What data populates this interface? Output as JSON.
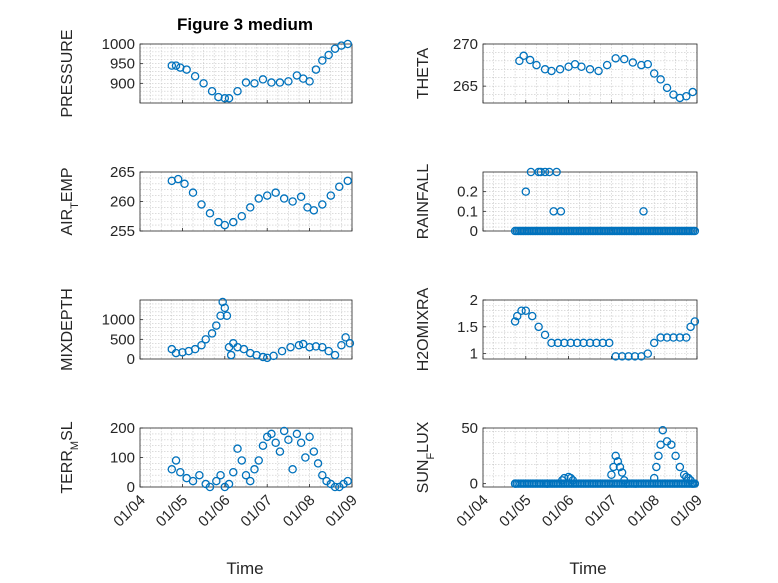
{
  "figure": {
    "title": "Figure 3 medium",
    "xlabel": "Time",
    "x_tick_labels": [
      "01/04",
      "01/05",
      "01/06",
      "01/07",
      "01/08",
      "01/09"
    ],
    "x_range_days": [
      4,
      9
    ],
    "marker_color": "#0072BD"
  },
  "chart_data": [
    {
      "type": "scatter",
      "panel": "top-left",
      "ylabel": "PRESSURE",
      "ylim": [
        850,
        1000
      ],
      "yticks": [
        900,
        950,
        1000
      ],
      "ytick_labels": [
        "900",
        "950",
        "1000"
      ],
      "x": [
        4.75,
        4.85,
        4.95,
        5.1,
        5.3,
        5.5,
        5.7,
        5.85,
        6.0,
        6.1,
        6.3,
        6.5,
        6.7,
        6.9,
        7.1,
        7.3,
        7.5,
        7.7,
        7.85,
        8.0,
        8.15,
        8.3,
        8.45,
        8.6,
        8.75,
        8.9
      ],
      "y": [
        945,
        945,
        940,
        935,
        918,
        900,
        880,
        865,
        862,
        862,
        880,
        902,
        900,
        910,
        902,
        902,
        905,
        920,
        912,
        905,
        935,
        958,
        972,
        988,
        996,
        1000
      ]
    },
    {
      "type": "scatter",
      "panel": "top-right",
      "ylabel": "THETA",
      "ylim": [
        263,
        270
      ],
      "yticks": [
        265,
        270
      ],
      "ytick_labels": [
        "265",
        "270"
      ],
      "x": [
        4.85,
        4.95,
        5.1,
        5.25,
        5.45,
        5.6,
        5.8,
        6.0,
        6.15,
        6.3,
        6.5,
        6.7,
        6.9,
        7.1,
        7.3,
        7.5,
        7.7,
        7.85,
        8.0,
        8.15,
        8.3,
        8.45,
        8.6,
        8.75,
        8.9
      ],
      "y": [
        268,
        268.6,
        268.1,
        267.5,
        267.0,
        266.8,
        267.0,
        267.3,
        267.6,
        267.3,
        267.0,
        266.8,
        267.5,
        268.3,
        268.2,
        267.8,
        267.5,
        267.6,
        266.5,
        265.8,
        264.8,
        264.0,
        263.6,
        263.8,
        264.3
      ]
    },
    {
      "type": "scatter",
      "panel": "row2-left",
      "ylabel": "AIR_TEMP",
      "ylim": [
        255,
        265
      ],
      "yticks": [
        255,
        260,
        265
      ],
      "ytick_labels": [
        "255",
        "260",
        "265"
      ],
      "x": [
        4.75,
        4.9,
        5.05,
        5.25,
        5.45,
        5.65,
        5.85,
        6.0,
        6.2,
        6.4,
        6.6,
        6.8,
        7.0,
        7.2,
        7.4,
        7.6,
        7.8,
        7.95,
        8.1,
        8.3,
        8.5,
        8.7,
        8.9
      ],
      "y": [
        263.5,
        263.8,
        263,
        261.5,
        259.5,
        258,
        256.5,
        256,
        256.5,
        257.5,
        259,
        260.5,
        261,
        261.5,
        260.5,
        260,
        260.8,
        259,
        258.5,
        259.5,
        261,
        262.5,
        263.5
      ]
    },
    {
      "type": "scatter",
      "panel": "row2-right",
      "ylabel": "RAINFALL",
      "ylim": [
        0,
        0.3
      ],
      "yticks": [
        0,
        0.1,
        0.2
      ],
      "ytick_labels": [
        "0",
        "0.1",
        "0.2"
      ],
      "x": [
        5.0,
        5.12,
        5.3,
        5.35,
        5.45,
        5.55,
        5.65,
        5.72,
        5.82,
        7.75
      ],
      "y": [
        0.2,
        0.3,
        0.3,
        0.3,
        0.3,
        0.3,
        0.1,
        0.3,
        0.1,
        0.1
      ],
      "zero_baseline_x_range": [
        4.75,
        8.95
      ]
    },
    {
      "type": "scatter",
      "panel": "row3-left",
      "ylabel": "MIXDEPTH",
      "ylim": [
        0,
        1500
      ],
      "yticks": [
        0,
        500,
        1000
      ],
      "ytick_labels": [
        "0",
        "500",
        "1000"
      ],
      "x": [
        4.75,
        4.85,
        5.0,
        5.15,
        5.3,
        5.45,
        5.55,
        5.7,
        5.8,
        5.9,
        5.95,
        6.0,
        6.05,
        6.1,
        6.15,
        6.2,
        6.3,
        6.45,
        6.6,
        6.75,
        6.9,
        7.0,
        7.15,
        7.35,
        7.55,
        7.75,
        7.85,
        8.0,
        8.15,
        8.3,
        8.45,
        8.6,
        8.75,
        8.85,
        8.95
      ],
      "y": [
        250,
        150,
        170,
        200,
        250,
        350,
        500,
        650,
        850,
        1100,
        1450,
        1300,
        1100,
        300,
        100,
        400,
        300,
        250,
        150,
        100,
        50,
        30,
        80,
        200,
        300,
        350,
        380,
        300,
        320,
        300,
        200,
        100,
        350,
        550,
        400
      ]
    },
    {
      "type": "scatter",
      "panel": "row3-right",
      "ylabel": "H2OMIXRA",
      "ylim": [
        0.9,
        2.0
      ],
      "yticks": [
        1,
        1.5,
        2
      ],
      "ytick_labels": [
        "1",
        "1.5",
        "2"
      ],
      "x": [
        4.75,
        4.8,
        4.9,
        5.0,
        5.15,
        5.3,
        5.45,
        5.6,
        5.75,
        5.9,
        6.05,
        6.2,
        6.35,
        6.5,
        6.65,
        6.8,
        6.95,
        7.1,
        7.25,
        7.4,
        7.55,
        7.7,
        7.85,
        8.0,
        8.15,
        8.3,
        8.45,
        8.6,
        8.75,
        8.85,
        8.95
      ],
      "y": [
        1.6,
        1.7,
        1.8,
        1.8,
        1.7,
        1.5,
        1.35,
        1.2,
        1.2,
        1.2,
        1.2,
        1.2,
        1.2,
        1.2,
        1.2,
        1.2,
        1.2,
        0.95,
        0.95,
        0.95,
        0.95,
        0.95,
        1.0,
        1.2,
        1.3,
        1.3,
        1.3,
        1.3,
        1.3,
        1.5,
        1.6
      ]
    },
    {
      "type": "scatter",
      "panel": "bottom-left",
      "ylabel": "TERR_MSL",
      "ylim": [
        0,
        200
      ],
      "yticks": [
        0,
        100,
        200
      ],
      "ytick_labels": [
        "0",
        "100",
        "200"
      ],
      "x": [
        4.75,
        4.85,
        4.95,
        5.1,
        5.25,
        5.4,
        5.55,
        5.65,
        5.8,
        5.9,
        6.0,
        6.1,
        6.2,
        6.3,
        6.4,
        6.5,
        6.6,
        6.7,
        6.8,
        6.9,
        7.0,
        7.1,
        7.2,
        7.3,
        7.4,
        7.5,
        7.6,
        7.7,
        7.8,
        7.9,
        8.0,
        8.1,
        8.2,
        8.3,
        8.4,
        8.5,
        8.6,
        8.7,
        8.8,
        8.9
      ],
      "y": [
        60,
        90,
        50,
        30,
        20,
        40,
        10,
        0,
        20,
        40,
        0,
        10,
        50,
        130,
        90,
        40,
        20,
        60,
        90,
        140,
        170,
        180,
        150,
        120,
        190,
        160,
        60,
        180,
        150,
        100,
        170,
        120,
        80,
        40,
        20,
        10,
        0,
        0,
        10,
        20
      ]
    },
    {
      "type": "scatter",
      "panel": "bottom-right",
      "ylabel": "SUN_FLUX",
      "ylim": [
        -3,
        50
      ],
      "yticks": [
        0,
        50
      ],
      "ytick_labels": [
        "0",
        "50"
      ],
      "x": [
        4.75,
        5.5,
        5.85,
        5.9,
        6.0,
        6.05,
        6.1,
        7.0,
        7.05,
        7.1,
        7.15,
        7.2,
        7.25,
        7.3,
        7.35,
        8.0,
        8.05,
        8.1,
        8.15,
        8.2,
        8.3,
        8.4,
        8.5,
        8.6,
        8.7,
        8.75,
        8.8,
        8.85,
        8.9
      ],
      "y": [
        0,
        0,
        3,
        5,
        6,
        5,
        3,
        8,
        15,
        25,
        20,
        15,
        10,
        3,
        0,
        5,
        15,
        25,
        35,
        48,
        38,
        35,
        25,
        15,
        8,
        6,
        5,
        3,
        0
      ],
      "zero_baseline_x_range": [
        4.75,
        8.95
      ]
    }
  ]
}
